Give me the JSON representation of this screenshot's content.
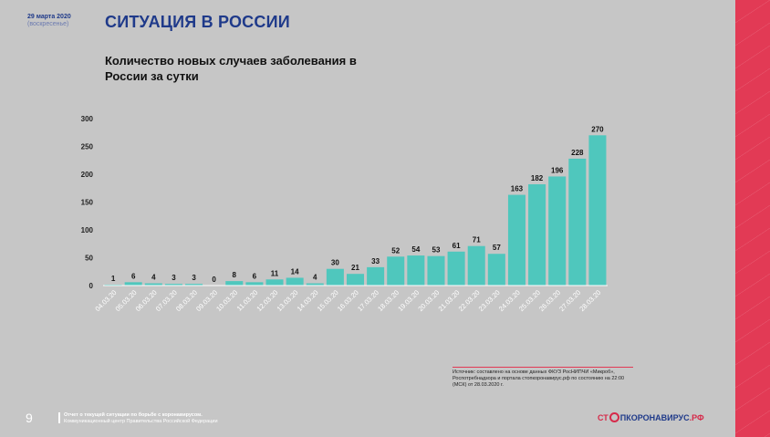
{
  "header": {
    "date_main": "29 марта 2020",
    "date_day": "(воскресенье)",
    "title": "СИТУАЦИЯ В РОССИИ",
    "subtitle": "Количество новых случаев заболевания в России за сутки"
  },
  "chart_data": {
    "type": "bar",
    "categories": [
      "04.03.20",
      "05.03.20",
      "06.03.20",
      "07.03.20",
      "08.03.20",
      "09.03.20",
      "10.03.20",
      "11.03.20",
      "12.03.20",
      "13.03.20",
      "14.03.20",
      "15.03.20",
      "16.03.20",
      "17.03.20",
      "18.03.20",
      "19.03.20",
      "20.03.20",
      "21.03.20",
      "22.03.20",
      "23.03.20",
      "24.03.20",
      "25.03.20",
      "26.03.20",
      "27.03.20",
      "28.03.20"
    ],
    "values": [
      1,
      6,
      4,
      3,
      3,
      0,
      8,
      6,
      11,
      14,
      4,
      30,
      21,
      33,
      52,
      54,
      53,
      61,
      71,
      57,
      163,
      182,
      196,
      228,
      270
    ],
    "yticks": [
      0,
      50,
      100,
      150,
      200,
      250,
      300
    ],
    "ylim": [
      0,
      300
    ],
    "bar_color": "#4fc7bd",
    "grid": false
  },
  "source": {
    "text": "Источник: составлено на основе данных ФКУЗ РосНИПЧИ «Микроб», Роспотребнадзора и портала стопкоронавирус.рф по состоянию на 22:00 (МСК) от 28.03.2020 г."
  },
  "footer": {
    "page_number": "9",
    "line1": "Отчет о текущей ситуации по борьбе с коронавирусом.",
    "line2": "Коммуникационный центр Правительства Российской Федерации",
    "logo_part1": "СТ",
    "logo_part2": "ПКОРОНАВИРУС",
    "logo_part3": ".РФ"
  },
  "colors": {
    "brand_blue": "#1f3a8a",
    "accent_red": "#e23a55",
    "background": "#c6c6c6"
  }
}
